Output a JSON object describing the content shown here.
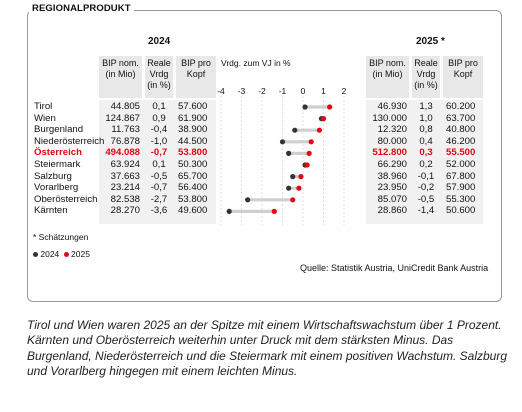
{
  "title": "REGIONALPRODUKT",
  "years": {
    "left": "2024",
    "right": "2025 *"
  },
  "headers": {
    "bip_nom": "BIP nom.\n(in Mio)",
    "reale_vrdg": "Reale\nVrdg\n(in %)",
    "bip_kopf": "BIP pro\nKopf",
    "vrdg_vj": "Vrdg. zum VJ in %"
  },
  "chart_data": {
    "type": "dumbbell",
    "axis": {
      "xlim": [
        -4,
        2
      ],
      "ticks": [
        "-4",
        "-3",
        "-2",
        "-1",
        "0",
        "1",
        "2"
      ]
    },
    "legend": {
      "s2024": "2024",
      "s2025": "2025"
    },
    "colors": {
      "s2024": "#333333",
      "s2025": "#e30613",
      "bar": "#cfcfcf",
      "highlight": "#e30613"
    },
    "rows": [
      {
        "region": "Tirol",
        "bip_2024": "44.805",
        "vrdg_2024": "0,1",
        "kopf_2024": "57.600",
        "bip_2025": "46.930",
        "vrdg_2025": "1,3",
        "kopf_2025": "60.200",
        "v2024": 0.1,
        "v2025": 1.3
      },
      {
        "region": "Wien",
        "bip_2024": "124.867",
        "vrdg_2024": "0,9",
        "kopf_2024": "61.900",
        "bip_2025": "130.000",
        "vrdg_2025": "1,0",
        "kopf_2025": "63.700",
        "v2024": 0.9,
        "v2025": 1.0
      },
      {
        "region": "Burgenland",
        "bip_2024": "11.763",
        "vrdg_2024": "-0,4",
        "kopf_2024": "38.900",
        "bip_2025": "12.320",
        "vrdg_2025": "0,8",
        "kopf_2025": "40.800",
        "v2024": -0.4,
        "v2025": 0.8
      },
      {
        "region": "Niederösterreich",
        "bip_2024": "76.878",
        "vrdg_2024": "-1,0",
        "kopf_2024": "44.500",
        "bip_2025": "80.000",
        "vrdg_2025": "0,4",
        "kopf_2025": "46.200",
        "v2024": -1.0,
        "v2025": 0.4
      },
      {
        "region": "Österreich",
        "bip_2024": "494.088",
        "vrdg_2024": "-0,7",
        "kopf_2024": "53.800",
        "bip_2025": "512.800",
        "vrdg_2025": "0,3",
        "kopf_2025": "55.500",
        "v2024": -0.7,
        "v2025": 0.3,
        "highlight": true
      },
      {
        "region": "Steiermark",
        "bip_2024": "63.924",
        "vrdg_2024": "0,1",
        "kopf_2024": "50.300",
        "bip_2025": "66.290",
        "vrdg_2025": "0,2",
        "kopf_2025": "52.000",
        "v2024": 0.1,
        "v2025": 0.2
      },
      {
        "region": "Salzburg",
        "bip_2024": "37.663",
        "vrdg_2024": "-0,5",
        "kopf_2024": "65.700",
        "bip_2025": "38.960",
        "vrdg_2025": "-0,1",
        "kopf_2025": "67.800",
        "v2024": -0.5,
        "v2025": -0.1
      },
      {
        "region": "Vorarlberg",
        "bip_2024": "23.214",
        "vrdg_2024": "-0,7",
        "kopf_2024": "56.400",
        "bip_2025": "23.950",
        "vrdg_2025": "-0,2",
        "kopf_2025": "57.900",
        "v2024": -0.7,
        "v2025": -0.2
      },
      {
        "region": "Oberösterreich",
        "bip_2024": "82.538",
        "vrdg_2024": "-2,7",
        "kopf_2024": "53.800",
        "bip_2025": "85.070",
        "vrdg_2025": "-0,5",
        "kopf_2025": "55.300",
        "v2024": -2.7,
        "v2025": -0.5
      },
      {
        "region": "Kärnten",
        "bip_2024": "28.270",
        "vrdg_2024": "-3,6",
        "kopf_2024": "49.600",
        "bip_2025": "28.860",
        "vrdg_2025": "-1,4",
        "kopf_2025": "50.600",
        "v2024": -3.6,
        "v2025": -1.4
      }
    ]
  },
  "footnote": "* Schätzungen",
  "source": "Quelle: Statistik Austria, UniCredit Bank Austria",
  "caption": "Tirol und Wien waren 2025 an der Spitze mit einem Wirtschaftswachstum über 1 Prozent. Kärnten und Oberösterreich weiterhin unter Druck mit dem stärksten Minus. Das Burgenland, Niederösterreich und die Steiermark mit einem positiven Wachstum. Salzburg und Vorarlberg hingegen mit einem leichten Minus."
}
